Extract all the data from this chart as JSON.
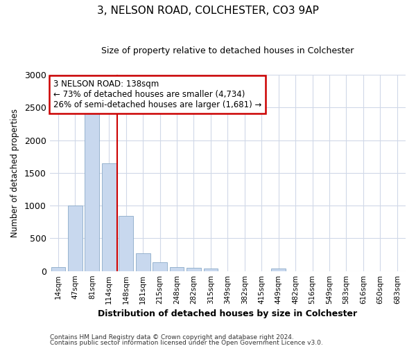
{
  "title1": "3, NELSON ROAD, COLCHESTER, CO3 9AP",
  "title2": "Size of property relative to detached houses in Colchester",
  "xlabel": "Distribution of detached houses by size in Colchester",
  "ylabel": "Number of detached properties",
  "categories": [
    "14sqm",
    "47sqm",
    "81sqm",
    "114sqm",
    "148sqm",
    "181sqm",
    "215sqm",
    "248sqm",
    "282sqm",
    "315sqm",
    "349sqm",
    "382sqm",
    "415sqm",
    "449sqm",
    "482sqm",
    "516sqm",
    "549sqm",
    "583sqm",
    "616sqm",
    "650sqm",
    "683sqm"
  ],
  "values": [
    55,
    1000,
    2460,
    1650,
    840,
    275,
    130,
    55,
    50,
    35,
    0,
    0,
    0,
    35,
    0,
    0,
    0,
    0,
    0,
    0,
    0
  ],
  "bar_color": "#c8d8ee",
  "bar_edge_color": "#8aaac8",
  "vline_x_idx": 4,
  "vline_color": "#cc0000",
  "annotation_text": "3 NELSON ROAD: 138sqm\n← 73% of detached houses are smaller (4,734)\n26% of semi-detached houses are larger (1,681) →",
  "annotation_box_color": "#cc0000",
  "ylim": [
    0,
    3000
  ],
  "yticks": [
    0,
    500,
    1000,
    1500,
    2000,
    2500,
    3000
  ],
  "footer1": "Contains HM Land Registry data © Crown copyright and database right 2024.",
  "footer2": "Contains public sector information licensed under the Open Government Licence v3.0.",
  "bg_color": "#ffffff",
  "plot_bg_color": "#ffffff",
  "grid_color": "#d0d8e8"
}
